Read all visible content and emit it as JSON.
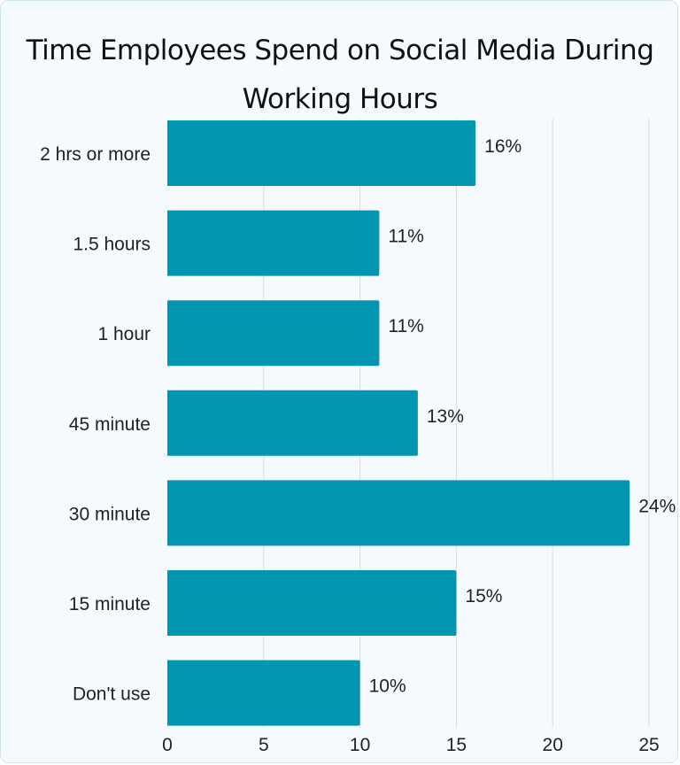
{
  "chart_data": {
    "type": "bar",
    "orientation": "horizontal",
    "title": "Time Employees Spend on Social Media During Working Hours",
    "categories": [
      "2 hrs or more",
      "1.5 hours",
      "1 hour",
      "45 minute",
      "30 minute",
      "15 minute",
      "Don't use"
    ],
    "values": [
      16,
      11,
      11,
      13,
      24,
      15,
      10
    ],
    "value_labels": [
      "16%",
      "11%",
      "11%",
      "13%",
      "24%",
      "15%",
      "10%"
    ],
    "xticks": [
      0,
      5,
      10,
      15,
      20,
      25
    ],
    "xlim": [
      0,
      25
    ],
    "grid": "vertical",
    "bar_color": "#0095b0",
    "grid_color": "#d9dde0"
  }
}
